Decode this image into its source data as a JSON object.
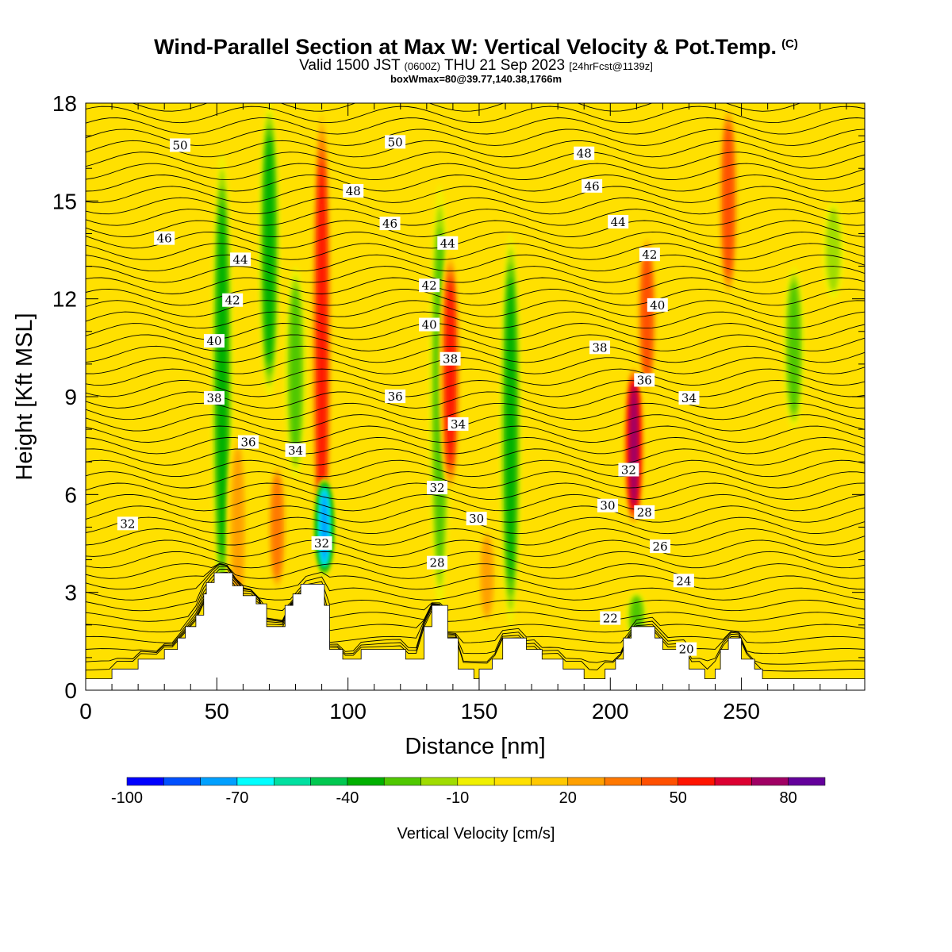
{
  "header": {
    "title": "Wind-Parallel Section at Max W: Vertical Velocity & Pot.Temp.",
    "copyright": "(C)",
    "valid_prefix": "Valid 1500 JST",
    "valid_utc": "(0600Z)",
    "valid_date": "THU 21 Sep 2023",
    "forecast": "[24hrFcst@1139z]",
    "box_wmax": "boxWmax=80@39.77,140.38,1766m"
  },
  "chart_data": {
    "type": "heatmap",
    "xlabel": "Distance [nm]",
    "ylabel": "Height [Kft MSL]",
    "xlim": [
      0,
      297
    ],
    "ylim": [
      0,
      18
    ],
    "x_ticks": [
      0,
      50,
      100,
      150,
      200,
      250
    ],
    "y_ticks": [
      0,
      3,
      6,
      9,
      12,
      15,
      18
    ],
    "colorbar": {
      "label": "Vertical Velocity [cm/s]",
      "tick_labels": [
        "-100",
        "-70",
        "-40",
        "-10",
        "20",
        "50",
        "80"
      ],
      "tick_values": [
        -100,
        -70,
        -40,
        -10,
        20,
        50,
        80
      ],
      "bins": [
        {
          "min": -100,
          "max": -90,
          "color": "#0000ff"
        },
        {
          "min": -90,
          "max": -80,
          "color": "#0050ff"
        },
        {
          "min": -80,
          "max": -70,
          "color": "#00a0ff"
        },
        {
          "min": -70,
          "max": -60,
          "color": "#00ffff"
        },
        {
          "min": -60,
          "max": -50,
          "color": "#00e0a0"
        },
        {
          "min": -50,
          "max": -40,
          "color": "#00c850"
        },
        {
          "min": -40,
          "max": -30,
          "color": "#00b000"
        },
        {
          "min": -30,
          "max": -20,
          "color": "#50c800"
        },
        {
          "min": -20,
          "max": -10,
          "color": "#a0dc00"
        },
        {
          "min": -10,
          "max": 0,
          "color": "#f0f000"
        },
        {
          "min": 0,
          "max": 10,
          "color": "#ffe000"
        },
        {
          "min": 10,
          "max": 20,
          "color": "#ffc800"
        },
        {
          "min": 20,
          "max": 30,
          "color": "#ffa000"
        },
        {
          "min": 30,
          "max": 40,
          "color": "#ff7800"
        },
        {
          "min": 40,
          "max": 50,
          "color": "#ff5000"
        },
        {
          "min": 50,
          "max": 60,
          "color": "#ff1400"
        },
        {
          "min": 60,
          "max": 70,
          "color": "#dc0032"
        },
        {
          "min": 70,
          "max": 80,
          "color": "#a00064"
        },
        {
          "min": 80,
          "max": 90,
          "color": "#64009b"
        }
      ]
    },
    "vertical_velocity_features": [
      {
        "x": 52,
        "h_min": 2.5,
        "h_max": 16.5,
        "w": -35
      },
      {
        "x": 58,
        "h_min": 2.0,
        "h_max": 8.0,
        "w": 30
      },
      {
        "x": 70,
        "h_min": 9.0,
        "h_max": 18.0,
        "w": -35
      },
      {
        "x": 73,
        "h_min": 3.0,
        "h_max": 7.0,
        "w": 40
      },
      {
        "x": 80,
        "h_min": 6.5,
        "h_max": 13.0,
        "w": -30
      },
      {
        "x": 90,
        "h_min": 3.5,
        "h_max": 18.0,
        "w": 60
      },
      {
        "x": 91,
        "h_min": 3.5,
        "h_max": 6.5,
        "w": -80
      },
      {
        "x": 135,
        "h_min": 2.5,
        "h_max": 15.5,
        "w": -30
      },
      {
        "x": 139,
        "h_min": 6.0,
        "h_max": 13.5,
        "w": 55
      },
      {
        "x": 162,
        "h_min": 2.0,
        "h_max": 14.0,
        "w": -35
      },
      {
        "x": 153,
        "h_min": 2.0,
        "h_max": 5.0,
        "w": 30
      },
      {
        "x": 209,
        "h_min": 5.0,
        "h_max": 10.0,
        "w": 80
      },
      {
        "x": 214,
        "h_min": 9.0,
        "h_max": 14.0,
        "w": 45
      },
      {
        "x": 245,
        "h_min": 12.0,
        "h_max": 18.0,
        "w": 50
      },
      {
        "x": 270,
        "h_min": 8.0,
        "h_max": 13.0,
        "w": -25
      },
      {
        "x": 285,
        "h_min": 12.0,
        "h_max": 15.0,
        "w": -15
      },
      {
        "x": 210,
        "h_min": 1.5,
        "h_max": 3.0,
        "w": -25
      }
    ],
    "terrain_heights": [
      [
        0,
        0.35
      ],
      [
        10,
        0.35
      ],
      [
        10,
        0.65
      ],
      [
        20,
        0.65
      ],
      [
        20,
        0.95
      ],
      [
        30,
        0.95
      ],
      [
        30,
        1.25
      ],
      [
        35,
        1.25
      ],
      [
        35,
        1.6
      ],
      [
        38,
        1.6
      ],
      [
        38,
        1.95
      ],
      [
        42,
        1.95
      ],
      [
        42,
        2.3
      ],
      [
        45,
        2.3
      ],
      [
        45,
        2.95
      ],
      [
        46,
        2.95
      ],
      [
        46,
        3.3
      ],
      [
        49,
        3.3
      ],
      [
        49,
        3.6
      ],
      [
        56,
        3.6
      ],
      [
        56,
        3.2
      ],
      [
        60,
        3.2
      ],
      [
        60,
        2.9
      ],
      [
        65,
        2.9
      ],
      [
        65,
        2.65
      ],
      [
        69,
        2.65
      ],
      [
        69,
        1.95
      ],
      [
        76,
        1.95
      ],
      [
        76,
        2.6
      ],
      [
        79,
        2.6
      ],
      [
        79,
        2.95
      ],
      [
        82,
        2.95
      ],
      [
        82,
        3.25
      ],
      [
        91,
        3.25
      ],
      [
        91,
        2.6
      ],
      [
        93,
        2.6
      ],
      [
        93,
        1.25
      ],
      [
        98,
        1.25
      ],
      [
        98,
        0.95
      ],
      [
        105,
        0.95
      ],
      [
        105,
        1.25
      ],
      [
        122,
        1.25
      ],
      [
        122,
        0.95
      ],
      [
        129,
        0.95
      ],
      [
        129,
        1.95
      ],
      [
        132,
        1.95
      ],
      [
        132,
        2.6
      ],
      [
        138,
        2.6
      ],
      [
        138,
        1.6
      ],
      [
        142,
        1.6
      ],
      [
        142,
        0.65
      ],
      [
        148,
        0.65
      ],
      [
        148,
        0.35
      ],
      [
        150,
        0.35
      ],
      [
        150,
        0.65
      ],
      [
        155,
        0.65
      ],
      [
        155,
        0.95
      ],
      [
        159,
        0.95
      ],
      [
        159,
        1.6
      ],
      [
        168,
        1.6
      ],
      [
        168,
        1.25
      ],
      [
        174,
        1.25
      ],
      [
        174,
        0.95
      ],
      [
        182,
        0.95
      ],
      [
        182,
        0.65
      ],
      [
        190,
        0.65
      ],
      [
        190,
        0.35
      ],
      [
        198,
        0.35
      ],
      [
        198,
        0.65
      ],
      [
        202,
        0.65
      ],
      [
        202,
        0.95
      ],
      [
        205,
        0.95
      ],
      [
        205,
        1.6
      ],
      [
        208,
        1.6
      ],
      [
        208,
        1.95
      ],
      [
        217,
        1.95
      ],
      [
        217,
        1.6
      ],
      [
        220,
        1.6
      ],
      [
        220,
        1.25
      ],
      [
        230,
        1.25
      ],
      [
        230,
        0.65
      ],
      [
        236,
        0.65
      ],
      [
        236,
        0.35
      ],
      [
        240,
        0.35
      ],
      [
        240,
        0.65
      ],
      [
        242,
        0.65
      ],
      [
        242,
        1.25
      ],
      [
        245,
        1.25
      ],
      [
        245,
        1.6
      ],
      [
        250,
        1.6
      ],
      [
        250,
        0.95
      ],
      [
        255,
        0.95
      ],
      [
        255,
        0.65
      ],
      [
        258,
        0.65
      ],
      [
        258,
        0.35
      ],
      [
        297,
        0.35
      ]
    ],
    "theta_contours": [
      {
        "label": "20",
        "label_x": 229,
        "label_y": 1.25
      },
      {
        "label": "22",
        "label_x": 200,
        "label_y": 2.2
      },
      {
        "label": "24",
        "label_x": 228,
        "label_y": 3.35
      },
      {
        "label": "26",
        "label_x": 219,
        "label_y": 4.4
      },
      {
        "label": "28",
        "label_x": 134,
        "label_y": 3.9
      },
      {
        "label": "28",
        "label_x": 213,
        "label_y": 5.45
      },
      {
        "label": "30",
        "label_x": 149,
        "label_y": 5.25
      },
      {
        "label": "30",
        "label_x": 199,
        "label_y": 5.65
      },
      {
        "label": "32",
        "label_x": 16,
        "label_y": 5.1
      },
      {
        "label": "32",
        "label_x": 90,
        "label_y": 4.5
      },
      {
        "label": "32",
        "label_x": 134,
        "label_y": 6.2
      },
      {
        "label": "32",
        "label_x": 207,
        "label_y": 6.75
      },
      {
        "label": "34",
        "label_x": 80,
        "label_y": 7.35
      },
      {
        "label": "34",
        "label_x": 142,
        "label_y": 8.15
      },
      {
        "label": "34",
        "label_x": 230,
        "label_y": 8.95
      },
      {
        "label": "36",
        "label_x": 62,
        "label_y": 7.6
      },
      {
        "label": "36",
        "label_x": 118,
        "label_y": 9.0
      },
      {
        "label": "36",
        "label_x": 213,
        "label_y": 9.5
      },
      {
        "label": "38",
        "label_x": 49,
        "label_y": 8.95
      },
      {
        "label": "38",
        "label_x": 139,
        "label_y": 10.15
      },
      {
        "label": "38",
        "label_x": 196,
        "label_y": 10.5
      },
      {
        "label": "40",
        "label_x": 49,
        "label_y": 10.7
      },
      {
        "label": "40",
        "label_x": 131,
        "label_y": 11.2
      },
      {
        "label": "40",
        "label_x": 218,
        "label_y": 11.8
      },
      {
        "label": "42",
        "label_x": 56,
        "label_y": 11.95
      },
      {
        "label": "42",
        "label_x": 131,
        "label_y": 12.4
      },
      {
        "label": "42",
        "label_x": 215,
        "label_y": 13.35
      },
      {
        "label": "44",
        "label_x": 59,
        "label_y": 13.2
      },
      {
        "label": "44",
        "label_x": 138,
        "label_y": 13.7
      },
      {
        "label": "44",
        "label_x": 203,
        "label_y": 14.35
      },
      {
        "label": "46",
        "label_x": 30,
        "label_y": 13.85
      },
      {
        "label": "46",
        "label_x": 116,
        "label_y": 14.3
      },
      {
        "label": "46",
        "label_x": 193,
        "label_y": 15.45
      },
      {
        "label": "48",
        "label_x": 102,
        "label_y": 15.3
      },
      {
        "label": "48",
        "label_x": 190,
        "label_y": 16.45
      },
      {
        "label": "50",
        "label_x": 36,
        "label_y": 16.7
      },
      {
        "label": "50",
        "label_x": 118,
        "label_y": 16.8
      }
    ],
    "grid": false
  }
}
